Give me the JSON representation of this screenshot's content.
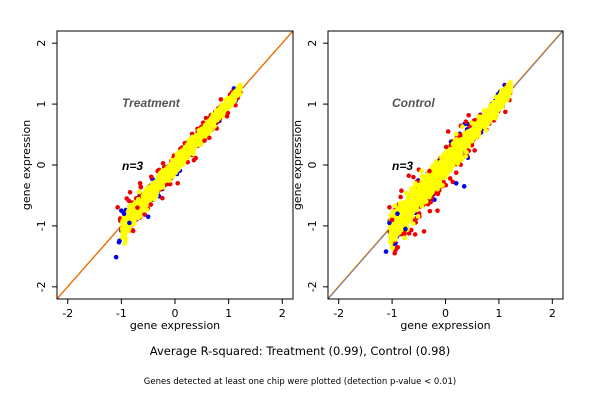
{
  "caption": "Average R-squared: Treatment (0.99), Control (0.98)",
  "footnote": "Genes detected at least one chip were plotted (detection p-value < 0.01)",
  "colors": {
    "blue": "#0000ee",
    "red": "#ee0000",
    "yellow": "#ffff00",
    "line_red": "#dd0000",
    "line_orange": "#ee9900",
    "line_blue": "#3355ff"
  },
  "chart_data": [
    {
      "type": "scatter",
      "panel_label": "Treatment",
      "annotation": "n=3",
      "xlabel": "gene expression",
      "ylabel": "gene expression",
      "xlim": [
        -2.2,
        2.2
      ],
      "ylim": [
        -2.2,
        2.2
      ],
      "xticks": [
        -2,
        -1,
        0,
        1,
        2
      ],
      "yticks": [
        -2,
        -1,
        0,
        1,
        2
      ],
      "grid": false,
      "cloud": {
        "x_range": [
          -1.0,
          1.22
        ],
        "y_range": [
          -1.05,
          1.25
        ],
        "spread": 0.13
      },
      "lines": [
        {
          "color": "line_red",
          "slope": 1,
          "intercept": 0
        },
        {
          "color": "line_orange",
          "slope": 1.0,
          "intercept": 0.01
        }
      ],
      "outliers": {
        "red": [
          [
            -0.65,
            -0.3
          ],
          [
            0.05,
            -0.3
          ],
          [
            -0.9,
            -0.55
          ],
          [
            -0.45,
            -0.65
          ],
          [
            0.55,
            0.4
          ],
          [
            -0.7,
            -0.7
          ]
        ],
        "blue": [
          [
            -1.0,
            -0.75
          ],
          [
            -0.85,
            -0.95
          ],
          [
            -0.5,
            -0.85
          ],
          [
            -0.95,
            -0.8
          ]
        ]
      }
    },
    {
      "type": "scatter",
      "panel_label": "Control",
      "annotation": "n=3",
      "xlabel": "gene expression",
      "ylabel": "gene expression",
      "xlim": [
        -2.2,
        2.2
      ],
      "ylim": [
        -2.2,
        2.2
      ],
      "xticks": [
        -2,
        -1,
        0,
        1,
        2
      ],
      "yticks": [
        -2,
        -1,
        0,
        1,
        2
      ],
      "grid": false,
      "cloud": {
        "x_range": [
          -1.05,
          1.22
        ],
        "y_range": [
          -1.1,
          1.25
        ],
        "spread": 0.2
      },
      "lines": [
        {
          "color": "line_blue",
          "slope": 1,
          "intercept": 0
        },
        {
          "color": "line_orange",
          "slope": 1.0,
          "intercept": 0.015
        }
      ],
      "outliers": {
        "red": [
          [
            -0.3,
            -0.1
          ],
          [
            0.05,
            0.55
          ],
          [
            -0.15,
            -0.75
          ],
          [
            -1.0,
            -0.9
          ],
          [
            -0.6,
            -0.2
          ]
        ],
        "blue": [
          [
            0.35,
            -0.35
          ],
          [
            -1.05,
            -0.95
          ],
          [
            -0.75,
            -1.05
          ],
          [
            0.2,
            -0.3
          ],
          [
            -0.9,
            -0.8
          ]
        ]
      }
    }
  ]
}
